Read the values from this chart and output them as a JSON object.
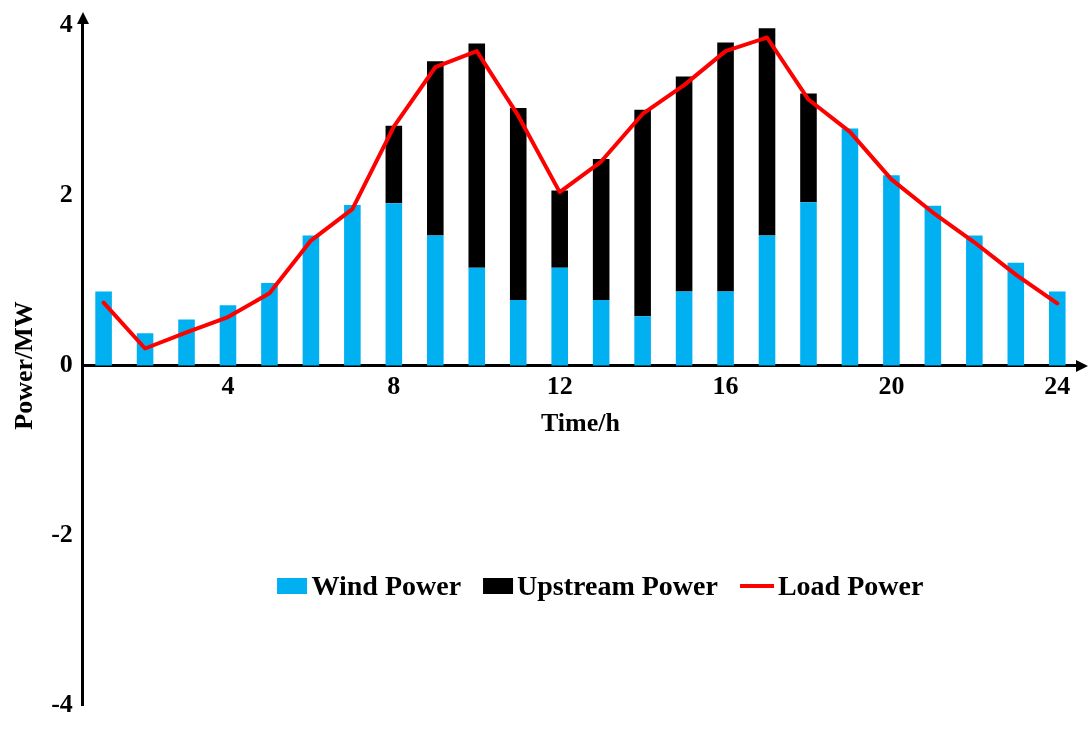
{
  "chart_data": {
    "type": "bar",
    "stacked": true,
    "xlabel": "Time/h",
    "ylabel": "Power/MW",
    "categories": [
      null,
      null,
      null,
      "4",
      null,
      null,
      null,
      "8",
      null,
      null,
      null,
      "12",
      null,
      null,
      null,
      "16",
      null,
      null,
      null,
      "20",
      null,
      null,
      null,
      "24"
    ],
    "series": [
      {
        "name": "Wind Power",
        "color": "#00b0f0",
        "values": [
          0.87,
          0.38,
          0.54,
          0.71,
          0.97,
          1.53,
          1.89,
          1.91,
          1.53,
          1.15,
          0.77,
          1.15,
          0.77,
          0.58,
          0.87,
          0.87,
          1.53,
          1.92,
          2.79,
          2.24,
          1.88,
          1.53,
          1.21,
          0.87
        ]
      },
      {
        "name": "Upstream Power",
        "color": "#000000",
        "values": [
          null,
          null,
          null,
          null,
          null,
          null,
          null,
          0.91,
          2.05,
          2.64,
          2.26,
          0.91,
          1.66,
          2.43,
          2.53,
          2.93,
          2.44,
          1.28,
          null,
          null,
          null,
          null,
          null,
          null
        ]
      },
      {
        "name": "Load Power",
        "type": "line",
        "color": "#ff0000",
        "values": [
          0.74,
          0.2,
          0.39,
          0.57,
          0.85,
          1.47,
          1.84,
          2.81,
          3.51,
          3.7,
          2.94,
          2.04,
          2.4,
          2.96,
          3.3,
          3.7,
          3.86,
          3.13,
          2.75,
          2.19,
          1.8,
          1.45,
          1.07,
          0.73
        ]
      }
    ],
    "ylim": [
      -4,
      4
    ],
    "yticks": [
      -4,
      -2,
      0,
      2,
      4
    ],
    "grid": false,
    "legend": "bottom",
    "marker": "none"
  }
}
